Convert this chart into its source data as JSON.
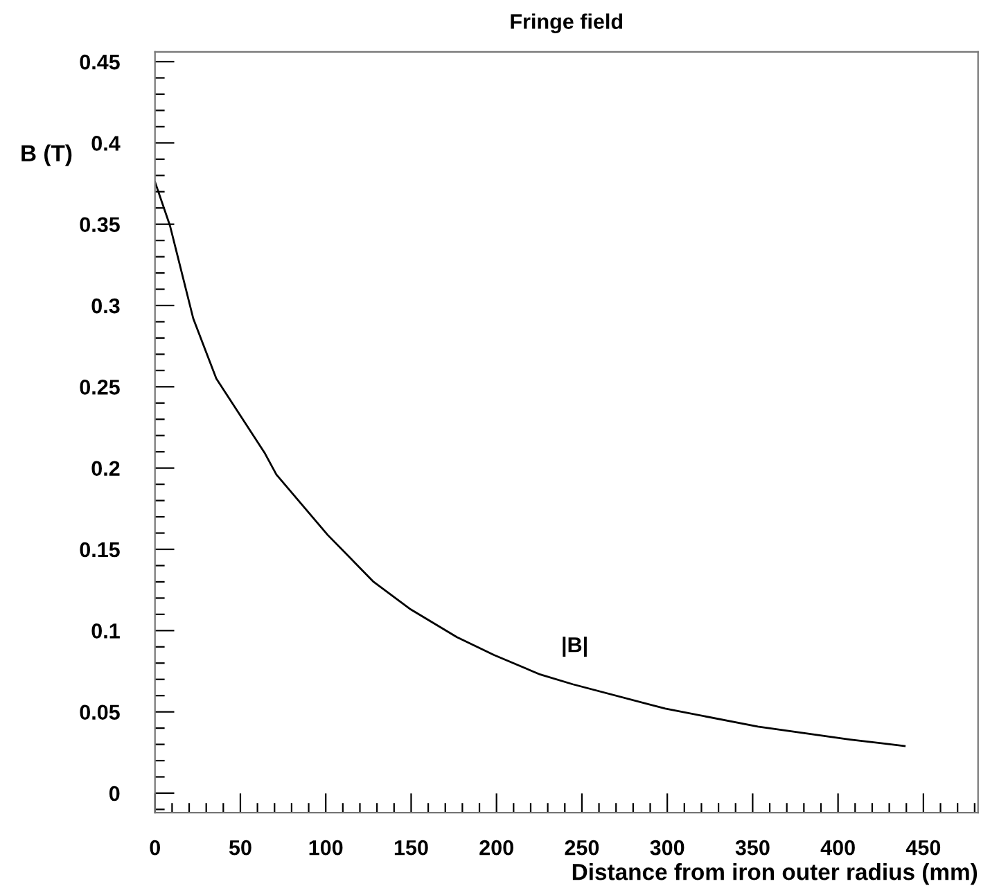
{
  "chart_data": {
    "type": "line",
    "title": "Fringe field",
    "xlabel": "Distance from iron outer radius (mm)",
    "ylabel": "B (T)",
    "x": [
      0,
      8.8,
      22.4,
      35.9,
      64.4,
      71.1,
      101,
      128,
      149.8,
      176.8,
      198.5,
      225.6,
      244.6,
      298.8,
      353,
      407,
      439
    ],
    "series": [
      {
        "color": "#000000",
        "values": [
          0.376,
          0.349,
          0.292,
          0.255,
          0.209,
          0.196,
          0.159,
          0.13,
          0.113,
          0.096,
          0.085,
          0.073,
          0.067,
          0.052,
          0.041,
          0.033,
          0.029
        ]
      }
    ],
    "annotations": [
      "|B|"
    ],
    "xlim": [
      0,
      482
    ],
    "ylim": [
      -0.012,
      0.456
    ],
    "xticks": [
      0,
      50,
      100,
      150,
      200,
      250,
      300,
      350,
      400,
      450
    ],
    "yticks": [
      0,
      0.05,
      0.1,
      0.15,
      0.2,
      0.25,
      0.3,
      0.35,
      0.4,
      0.45
    ],
    "grid": false,
    "marker": "none",
    "line_style": "solid"
  }
}
